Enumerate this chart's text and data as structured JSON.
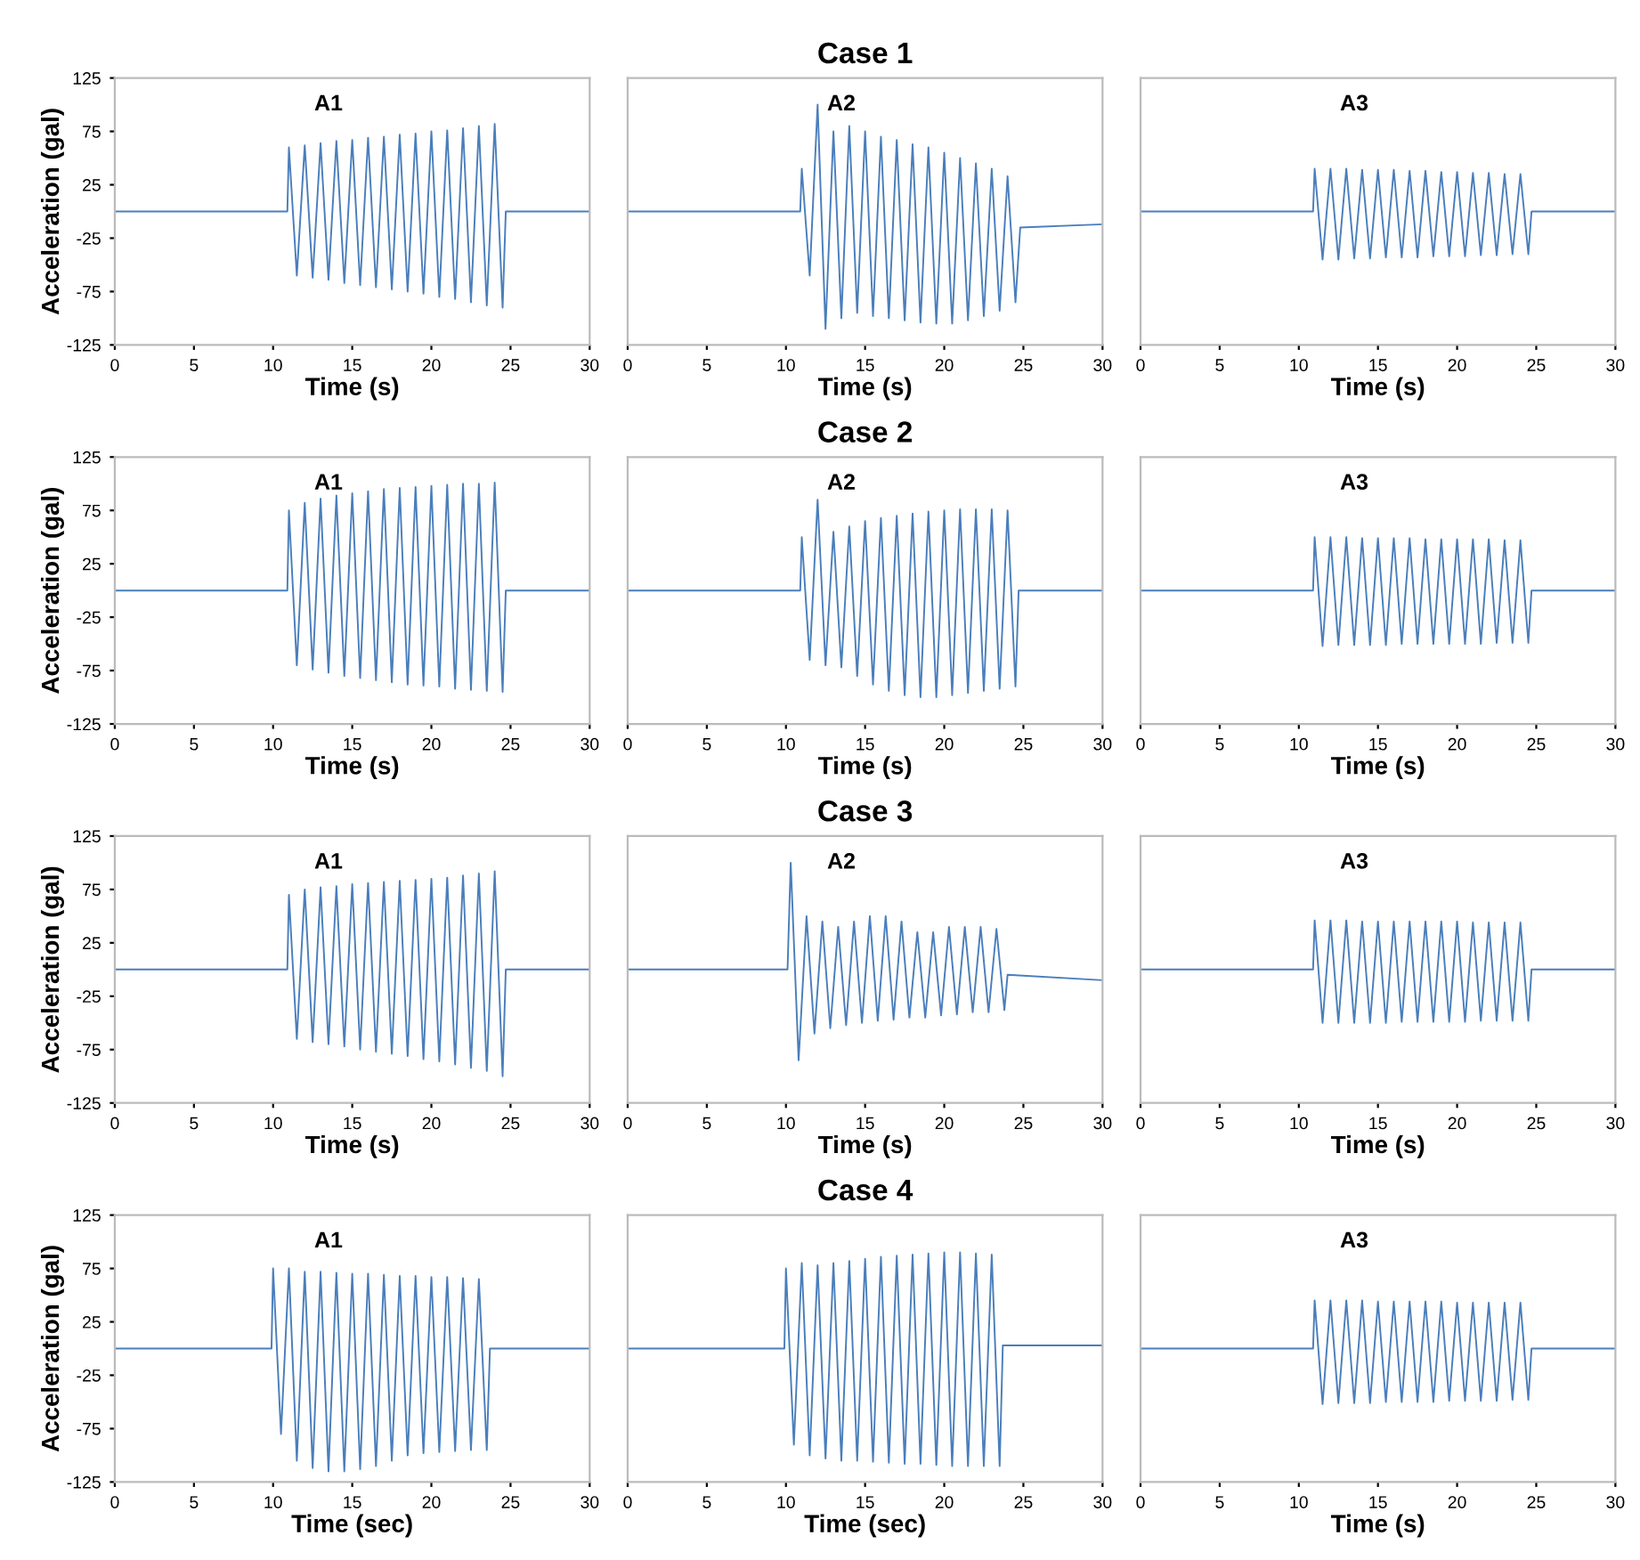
{
  "chart_data": [
    {
      "type": "line",
      "xlabel": "Time (s)",
      "ylabel": "Acceleration (gal)",
      "annotations": [
        "A1"
      ],
      "xlim": [
        0,
        30
      ],
      "xticks": [
        0,
        5,
        10,
        15,
        20,
        25,
        30
      ],
      "ylim": [
        -125,
        125
      ],
      "yticks": [
        -125,
        -75,
        -25,
        25,
        75,
        125
      ],
      "series": [
        {
          "color": "#4a7ebb",
          "x": [
            0,
            10.9,
            11,
            11.5,
            12,
            12.5,
            13,
            13.5,
            14,
            14.5,
            15,
            15.5,
            16,
            16.5,
            17,
            17.5,
            18,
            18.5,
            19,
            19.5,
            20,
            20.5,
            21,
            21.5,
            22,
            22.5,
            23,
            23.5,
            24,
            24.5,
            24.7,
            30
          ],
          "values": [
            0,
            0,
            60,
            -60,
            62,
            -62,
            64,
            -64,
            66,
            -67,
            67,
            -69,
            69,
            -71,
            70,
            -73,
            72,
            -75,
            73,
            -77,
            75,
            -80,
            76,
            -82,
            78,
            -85,
            80,
            -88,
            82,
            -90,
            0,
            0
          ]
        }
      ]
    },
    {
      "type": "line",
      "title": "Case 1",
      "xlabel": "Time (s)",
      "annotations": [
        "A2"
      ],
      "xlim": [
        0,
        30
      ],
      "xticks": [
        0,
        5,
        10,
        15,
        20,
        25,
        30
      ],
      "ylim": [
        -125,
        125
      ],
      "tick_labels": "x",
      "series": [
        {
          "color": "#4a7ebb",
          "x": [
            0,
            10.9,
            11,
            11.5,
            12,
            12.5,
            13,
            13.5,
            14,
            14.5,
            15,
            15.5,
            16,
            16.5,
            17,
            17.5,
            18,
            18.5,
            19,
            19.5,
            20,
            20.5,
            21,
            21.5,
            22,
            22.5,
            23,
            23.5,
            24,
            24.5,
            24.8,
            30
          ],
          "values": [
            0,
            0,
            40,
            -60,
            100,
            -110,
            75,
            -100,
            80,
            -95,
            75,
            -98,
            70,
            -100,
            67,
            -102,
            63,
            -104,
            60,
            -105,
            55,
            -105,
            50,
            -102,
            45,
            -98,
            40,
            -93,
            33,
            -85,
            -15,
            -12
          ]
        }
      ]
    },
    {
      "type": "line",
      "xlabel": "Time (s)",
      "annotations": [
        "A3"
      ],
      "xlim": [
        0,
        30
      ],
      "xticks": [
        0,
        5,
        10,
        15,
        20,
        25,
        30
      ],
      "ylim": [
        -125,
        125
      ],
      "tick_labels": "x",
      "series": [
        {
          "color": "#4a7ebb",
          "x": [
            0,
            10.9,
            11,
            11.5,
            12,
            12.5,
            13,
            13.5,
            14,
            14.5,
            15,
            15.5,
            16,
            16.5,
            17,
            17.5,
            18,
            18.5,
            19,
            19.5,
            20,
            20.5,
            21,
            21.5,
            22,
            22.5,
            23,
            23.5,
            24,
            24.5,
            24.7,
            30
          ],
          "values": [
            0,
            0,
            40,
            -45,
            40,
            -45,
            40,
            -44,
            39,
            -44,
            39,
            -43,
            39,
            -43,
            38,
            -43,
            38,
            -42,
            37,
            -42,
            37,
            -42,
            36,
            -41,
            36,
            -41,
            35,
            -40,
            35,
            -40,
            0,
            0
          ]
        }
      ]
    },
    {
      "type": "line",
      "xlabel": "Time (s)",
      "ylabel": "Acceleration (gal)",
      "annotations": [
        "A1"
      ],
      "xlim": [
        0,
        30
      ],
      "xticks": [
        0,
        5,
        10,
        15,
        20,
        25,
        30
      ],
      "ylim": [
        -125,
        125
      ],
      "yticks": [
        -125,
        -75,
        -25,
        25,
        75,
        125
      ],
      "series": [
        {
          "color": "#4a7ebb",
          "x": [
            0,
            10.9,
            11,
            11.5,
            12,
            12.5,
            13,
            13.5,
            14,
            14.5,
            15,
            15.5,
            16,
            16.5,
            17,
            17.5,
            18,
            18.5,
            19,
            19.5,
            20,
            20.5,
            21,
            21.5,
            22,
            22.5,
            23,
            23.5,
            24,
            24.5,
            24.7,
            30
          ],
          "values": [
            0,
            0,
            75,
            -70,
            82,
            -74,
            86,
            -77,
            89,
            -80,
            91,
            -82,
            93,
            -84,
            95,
            -86,
            96,
            -88,
            97,
            -89,
            98,
            -90,
            99,
            -92,
            100,
            -93,
            100,
            -94,
            101,
            -95,
            0,
            0
          ]
        }
      ]
    },
    {
      "type": "line",
      "title": "Case 2",
      "xlabel": "Time (s)",
      "annotations": [
        "A2"
      ],
      "xlim": [
        0,
        30
      ],
      "xticks": [
        0,
        5,
        10,
        15,
        20,
        25,
        30
      ],
      "ylim": [
        -125,
        125
      ],
      "tick_labels": "x",
      "series": [
        {
          "color": "#4a7ebb",
          "x": [
            0,
            10.9,
            11,
            11.5,
            12,
            12.5,
            13,
            13.5,
            14,
            14.5,
            15,
            15.5,
            16,
            16.5,
            17,
            17.5,
            18,
            18.5,
            19,
            19.5,
            20,
            20.5,
            21,
            21.5,
            22,
            22.5,
            23,
            23.5,
            24,
            24.5,
            24.7,
            30
          ],
          "values": [
            0,
            0,
            50,
            -65,
            85,
            -70,
            55,
            -72,
            60,
            -80,
            65,
            -88,
            68,
            -94,
            70,
            -98,
            72,
            -100,
            74,
            -100,
            75,
            -98,
            76,
            -96,
            76,
            -94,
            76,
            -92,
            75,
            -90,
            0,
            0
          ]
        }
      ]
    },
    {
      "type": "line",
      "xlabel": "Time (s)",
      "annotations": [
        "A3"
      ],
      "xlim": [
        0,
        30
      ],
      "xticks": [
        0,
        5,
        10,
        15,
        20,
        25,
        30
      ],
      "ylim": [
        -125,
        125
      ],
      "tick_labels": "x",
      "series": [
        {
          "color": "#4a7ebb",
          "x": [
            0,
            10.9,
            11,
            11.5,
            12,
            12.5,
            13,
            13.5,
            14,
            14.5,
            15,
            15.5,
            16,
            16.5,
            17,
            17.5,
            18,
            18.5,
            19,
            19.5,
            20,
            20.5,
            21,
            21.5,
            22,
            22.5,
            23,
            23.5,
            24,
            24.5,
            24.7,
            30
          ],
          "values": [
            0,
            0,
            50,
            -52,
            50,
            -51,
            50,
            -51,
            49,
            -51,
            49,
            -51,
            49,
            -50,
            49,
            -50,
            48,
            -50,
            48,
            -50,
            48,
            -50,
            48,
            -50,
            48,
            -49,
            47,
            -49,
            47,
            -49,
            0,
            0
          ]
        }
      ]
    },
    {
      "type": "line",
      "xlabel": "Time (s)",
      "ylabel": "Acceleration (gal)",
      "annotations": [
        "A1"
      ],
      "xlim": [
        0,
        30
      ],
      "xticks": [
        0,
        5,
        10,
        15,
        20,
        25,
        30
      ],
      "ylim": [
        -125,
        125
      ],
      "yticks": [
        -125,
        -75,
        -25,
        25,
        75,
        125
      ],
      "series": [
        {
          "color": "#4a7ebb",
          "x": [
            0,
            10.9,
            11,
            11.5,
            12,
            12.5,
            13,
            13.5,
            14,
            14.5,
            15,
            15.5,
            16,
            16.5,
            17,
            17.5,
            18,
            18.5,
            19,
            19.5,
            20,
            20.5,
            21,
            21.5,
            22,
            22.5,
            23,
            23.5,
            24,
            24.5,
            24.7,
            30
          ],
          "values": [
            0,
            0,
            70,
            -65,
            75,
            -68,
            77,
            -70,
            78,
            -72,
            80,
            -75,
            81,
            -77,
            82,
            -79,
            83,
            -81,
            84,
            -84,
            85,
            -86,
            86,
            -89,
            88,
            -92,
            90,
            -95,
            92,
            -100,
            0,
            0
          ]
        }
      ]
    },
    {
      "type": "line",
      "title": "Case 3",
      "xlabel": "Time (s)",
      "annotations": [
        "A2"
      ],
      "xlim": [
        0,
        30
      ],
      "xticks": [
        0,
        5,
        10,
        15,
        20,
        25,
        30
      ],
      "ylim": [
        -125,
        125
      ],
      "tick_labels": "x",
      "series": [
        {
          "color": "#4a7ebb",
          "x": [
            0,
            10.1,
            10.3,
            10.8,
            11.3,
            11.8,
            12.3,
            12.8,
            13.3,
            13.8,
            14.3,
            14.8,
            15.3,
            15.8,
            16.3,
            16.8,
            17.3,
            17.8,
            18.3,
            18.8,
            19.3,
            19.8,
            20.3,
            20.8,
            21.3,
            21.8,
            22.3,
            22.8,
            23.3,
            23.8,
            24,
            30
          ],
          "values": [
            0,
            0,
            100,
            -85,
            50,
            -60,
            45,
            -55,
            40,
            -52,
            45,
            -50,
            50,
            -48,
            50,
            -47,
            45,
            -45,
            35,
            -45,
            35,
            -43,
            40,
            -42,
            40,
            -40,
            40,
            -40,
            38,
            -38,
            -5,
            -10
          ]
        }
      ]
    },
    {
      "type": "line",
      "xlabel": "Time (s)",
      "annotations": [
        "A3"
      ],
      "xlim": [
        0,
        30
      ],
      "xticks": [
        0,
        5,
        10,
        15,
        20,
        25,
        30
      ],
      "ylim": [
        -125,
        125
      ],
      "tick_labels": "x",
      "series": [
        {
          "color": "#4a7ebb",
          "x": [
            0,
            10.9,
            11,
            11.5,
            12,
            12.5,
            13,
            13.5,
            14,
            14.5,
            15,
            15.5,
            16,
            16.5,
            17,
            17.5,
            18,
            18.5,
            19,
            19.5,
            20,
            20.5,
            21,
            21.5,
            22,
            22.5,
            23,
            23.5,
            24,
            24.5,
            24.7,
            30
          ],
          "values": [
            0,
            0,
            46,
            -50,
            46,
            -50,
            46,
            -50,
            45,
            -50,
            45,
            -50,
            45,
            -49,
            45,
            -49,
            45,
            -49,
            45,
            -49,
            45,
            -49,
            44,
            -48,
            44,
            -48,
            44,
            -48,
            44,
            -48,
            0,
            0
          ]
        }
      ]
    },
    {
      "type": "line",
      "xlabel": "Time (sec)",
      "ylabel": "Acceleration (gal)",
      "annotations": [
        "A1"
      ],
      "xlim": [
        0,
        30
      ],
      "xticks": [
        0,
        5,
        10,
        15,
        20,
        25,
        30
      ],
      "ylim": [
        -125,
        125
      ],
      "yticks": [
        -125,
        -75,
        -25,
        25,
        75,
        125
      ],
      "series": [
        {
          "color": "#4a7ebb",
          "x": [
            0,
            9.9,
            10,
            10.5,
            11,
            11.5,
            12,
            12.5,
            13,
            13.5,
            14,
            14.5,
            15,
            15.5,
            16,
            16.5,
            17,
            17.5,
            18,
            18.5,
            19,
            19.5,
            20,
            20.5,
            21,
            21.5,
            22,
            22.5,
            23,
            23.5,
            23.7,
            30
          ],
          "values": [
            0,
            0,
            75,
            -80,
            75,
            -105,
            72,
            -112,
            72,
            -115,
            71,
            -115,
            70,
            -113,
            70,
            -110,
            69,
            -105,
            68,
            -100,
            68,
            -98,
            67,
            -97,
            67,
            -96,
            66,
            -95,
            65,
            -95,
            0,
            0
          ]
        }
      ]
    },
    {
      "type": "line",
      "title": "Case 4",
      "xlabel": "Time (sec)",
      "xlim": [
        0,
        30
      ],
      "xticks": [
        0,
        5,
        10,
        15,
        20,
        25,
        30
      ],
      "ylim": [
        -125,
        125
      ],
      "tick_labels": "x",
      "series": [
        {
          "color": "#4a7ebb",
          "x": [
            0,
            9.9,
            10,
            10.5,
            11,
            11.5,
            12,
            12.5,
            13,
            13.5,
            14,
            14.5,
            15,
            15.5,
            16,
            16.5,
            17,
            17.5,
            18,
            18.5,
            19,
            19.5,
            20,
            20.5,
            21,
            21.5,
            22,
            22.5,
            23,
            23.5,
            23.7,
            30
          ],
          "values": [
            0,
            0,
            75,
            -90,
            80,
            -100,
            78,
            -103,
            80,
            -105,
            82,
            -105,
            84,
            -106,
            86,
            -107,
            87,
            -108,
            88,
            -108,
            89,
            -109,
            90,
            -110,
            90,
            -110,
            89,
            -110,
            88,
            -110,
            3,
            3
          ]
        }
      ]
    },
    {
      "type": "line",
      "xlabel": "Time (s)",
      "annotations": [
        "A3"
      ],
      "xlim": [
        0,
        30
      ],
      "xticks": [
        0,
        5,
        10,
        15,
        20,
        25,
        30
      ],
      "ylim": [
        -125,
        125
      ],
      "tick_labels": "x",
      "series": [
        {
          "color": "#4a7ebb",
          "x": [
            0,
            10.9,
            11,
            11.5,
            12,
            12.5,
            13,
            13.5,
            14,
            14.5,
            15,
            15.5,
            16,
            16.5,
            17,
            17.5,
            18,
            18.5,
            19,
            19.5,
            20,
            20.5,
            21,
            21.5,
            22,
            22.5,
            23,
            23.5,
            24,
            24.5,
            24.7,
            30
          ],
          "values": [
            0,
            0,
            45,
            -52,
            45,
            -51,
            45,
            -51,
            45,
            -51,
            44,
            -50,
            44,
            -50,
            44,
            -50,
            44,
            -50,
            44,
            -49,
            43,
            -49,
            43,
            -49,
            43,
            -49,
            43,
            -48,
            43,
            -48,
            0,
            0
          ]
        }
      ]
    }
  ]
}
